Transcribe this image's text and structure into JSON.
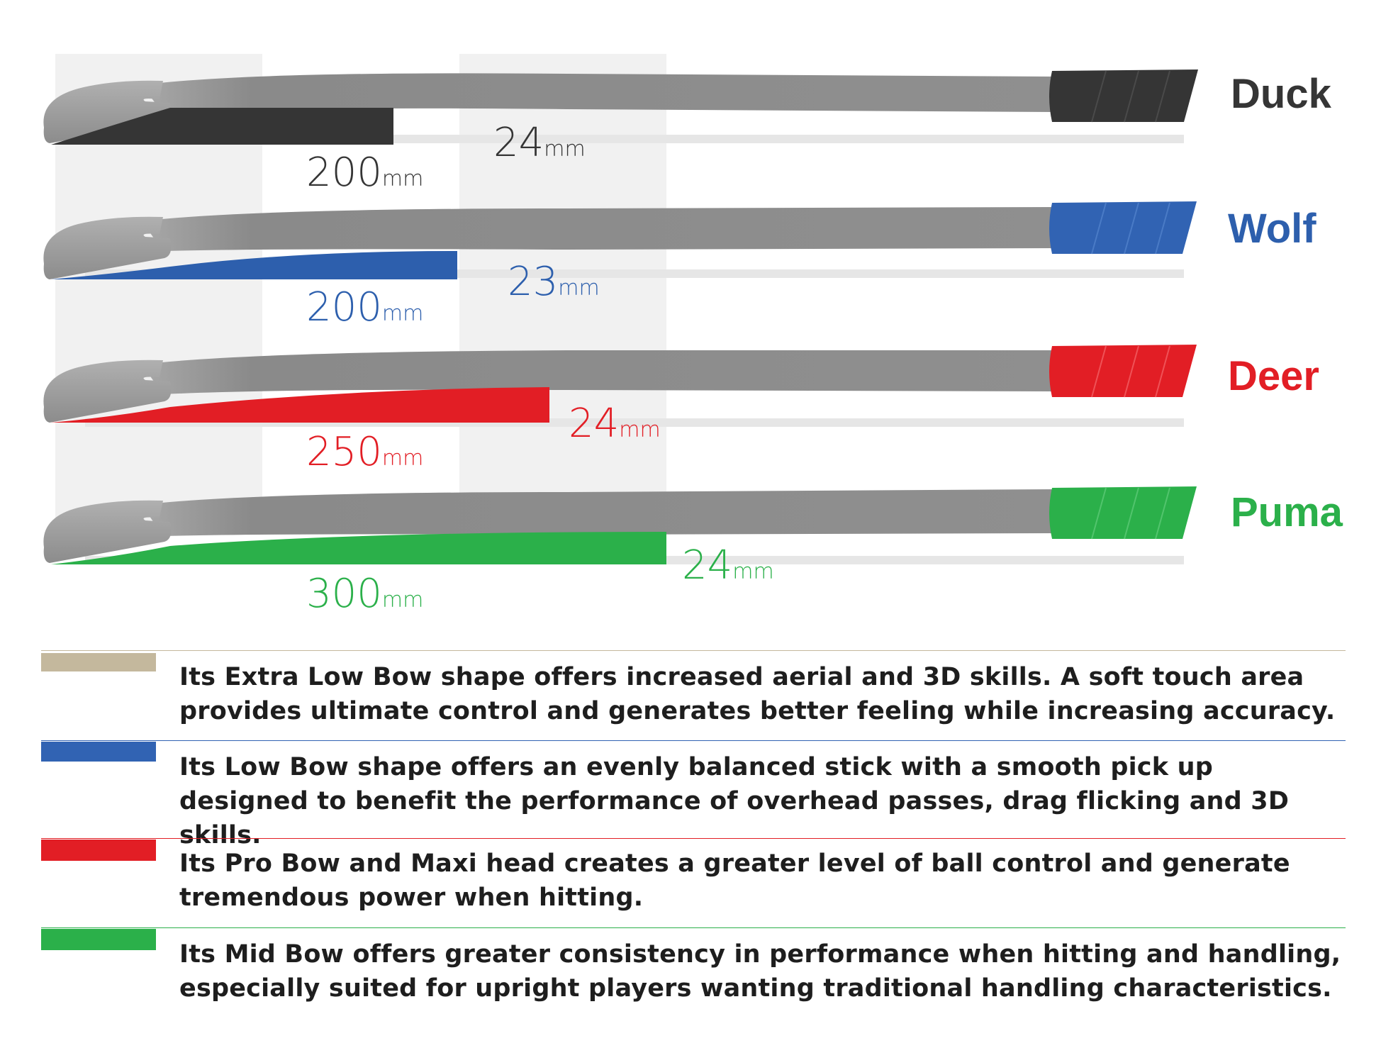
{
  "sticks": [
    {
      "name": "Duck",
      "color": "#353535",
      "grip_color": "#353535",
      "bow_length": "200",
      "bow_unit": "mm",
      "bow_height": "24",
      "height_unit": "mm",
      "description": "Its Extra Low Bow shape offers increased aerial and 3D skills. A soft touch area provides ultimate control and generates better feeling while increasing accuracy.",
      "legend_color": "#c4b89d"
    },
    {
      "name": "Wolf",
      "color": "#2d5fad",
      "grip_color": "#3163b3",
      "bow_length": "200",
      "bow_unit": "mm",
      "bow_height": "23",
      "height_unit": "mm",
      "description": "Its Low Bow shape offers an evenly balanced stick with a smooth pick up designed to benefit the performance of overhead passes, drag flicking and 3D skills.",
      "legend_color": "#3163b3"
    },
    {
      "name": "Deer",
      "color": "#e21e25",
      "grip_color": "#e21e25",
      "bow_length": "250",
      "bow_unit": "mm",
      "bow_height": "24",
      "height_unit": "mm",
      "description": "Its Pro Bow and Maxi head creates a greater level of ball control and generate tremendous power when hitting.",
      "legend_color": "#e21e25"
    },
    {
      "name": "Puma",
      "color": "#2bb04a",
      "grip_color": "#2bb04a",
      "bow_length": "300",
      "bow_unit": "mm",
      "bow_height": "24",
      "height_unit": "mm",
      "description": "Its Mid Bow offers greater consistency in performance when hitting and handling, especially suited for upright players wanting traditional handling characteristics.",
      "legend_color": "#2bb04a"
    }
  ],
  "colors": {
    "shaft": "#8e8e8e",
    "shaft_dark": "#7a7a7a",
    "head": "#9a9a9a",
    "zone_band": "#f1f1f1",
    "baseline": "#e6e6e6"
  }
}
